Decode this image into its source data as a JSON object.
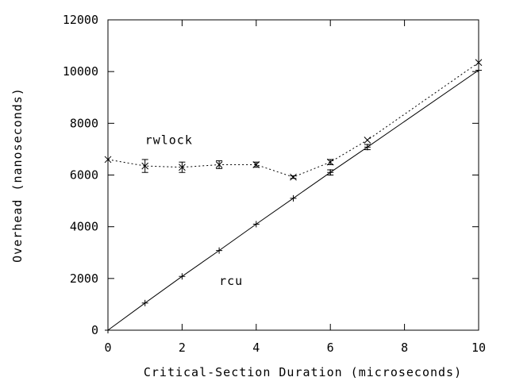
{
  "chart_data": {
    "type": "line",
    "xlabel": "Critical-Section Duration (microseconds)",
    "ylabel": "Overhead (nanoseconds)",
    "xlim": [
      0,
      10
    ],
    "ylim": [
      0,
      12000
    ],
    "x_ticks": [
      0,
      2,
      4,
      6,
      8,
      10
    ],
    "y_ticks": [
      0,
      2000,
      4000,
      6000,
      8000,
      10000,
      12000
    ],
    "grid": false,
    "legend": "none",
    "series": [
      {
        "name": "rcu",
        "style": "solid",
        "marker": "plus",
        "x": [
          0,
          1,
          2,
          3,
          4,
          5,
          6,
          7,
          10
        ],
        "y": [
          0,
          1050,
          2080,
          3080,
          4100,
          5100,
          6100,
          7080,
          10050
        ],
        "err": [
          0,
          0,
          0,
          0,
          0,
          0,
          100,
          100,
          0
        ]
      },
      {
        "name": "rwlock",
        "style": "dotted",
        "marker": "x",
        "x": [
          0,
          1,
          2,
          3,
          4,
          5,
          6,
          7,
          10
        ],
        "y": [
          6600,
          6350,
          6300,
          6400,
          6400,
          5920,
          6500,
          7350,
          10350
        ],
        "err": [
          0,
          250,
          200,
          150,
          100,
          50,
          100,
          0,
          0
        ]
      }
    ],
    "annotations": [
      {
        "text": "rwlock",
        "x": 1.0,
        "y": 7350
      },
      {
        "text": "rcu",
        "x": 3.0,
        "y": 1900
      }
    ]
  }
}
